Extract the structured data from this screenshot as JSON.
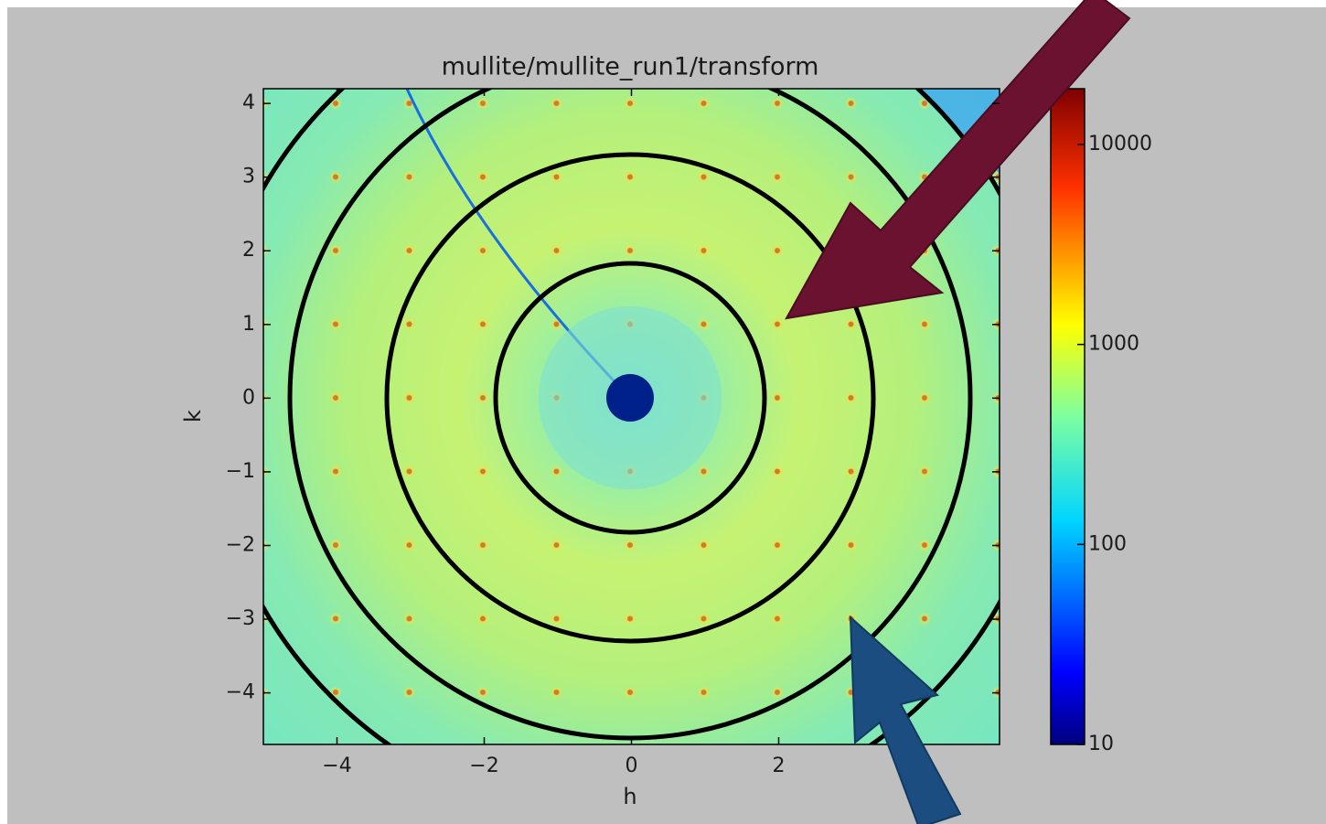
{
  "chart_data": {
    "type": "heatmap",
    "title": "mullite/mullite_run1/transform",
    "x_label": "h",
    "y_label": "k",
    "xlim": [
      -5,
      5
    ],
    "ylim": [
      -4.7,
      4.2
    ],
    "xticks": [
      {
        "value": -4,
        "label": "−4"
      },
      {
        "value": -2,
        "label": "−2"
      },
      0,
      2
    ],
    "yticks": [
      {
        "value": -4,
        "label": "−4"
      },
      {
        "value": -3,
        "label": "−3"
      },
      {
        "value": -2,
        "label": "−2"
      },
      {
        "value": -1,
        "label": "−1"
      },
      0,
      1,
      2,
      3,
      4
    ],
    "colorbar": {
      "log_scale": true,
      "clim": [
        10,
        19000
      ],
      "ticks": [
        10,
        100,
        1000,
        10000
      ],
      "colormap": "jet"
    }
  }
}
